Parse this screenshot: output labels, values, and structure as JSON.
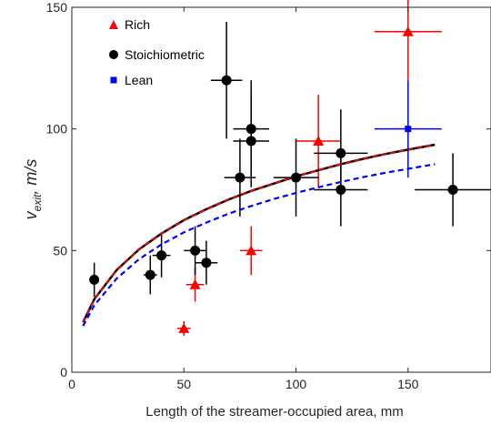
{
  "chart_data": {
    "type": "scatter",
    "xlabel": "Length of the streamer-occupied area, mm",
    "ylabel": {
      "main": "v",
      "sub": "exit",
      "unit": ", m/s"
    },
    "xlim": [
      0,
      187
    ],
    "ylim": [
      0,
      150
    ],
    "xticks": [
      0,
      50,
      100,
      150
    ],
    "yticks": [
      0,
      50,
      100,
      150
    ],
    "xtick_labels": [
      "0",
      "50",
      "100",
      "150"
    ],
    "ytick_labels": [
      "0",
      "50",
      "100",
      "150"
    ],
    "grid": false,
    "legend_position": "top-left",
    "series": [
      {
        "name": "Rich",
        "marker": "triangle",
        "color": "#ff0000",
        "points": [
          {
            "x": 50,
            "y": 18,
            "xerr": 3,
            "yerr": 3
          },
          {
            "x": 55,
            "y": 36,
            "xerr": 4,
            "yerr": 7
          },
          {
            "x": 80,
            "y": 50,
            "xerr": 5,
            "yerr": 10
          },
          {
            "x": 110,
            "y": 95,
            "xerr": 10,
            "yerr": 19
          },
          {
            "x": 150,
            "y": 140,
            "xerr": 15,
            "yerr": 20
          }
        ]
      },
      {
        "name": "Stoichiometric",
        "marker": "circle",
        "color": "#000000",
        "points": [
          {
            "x": 10,
            "y": 38,
            "xerr": 1,
            "yerr": 7
          },
          {
            "x": 35,
            "y": 40,
            "xerr": 3,
            "yerr": 8
          },
          {
            "x": 40,
            "y": 48,
            "xerr": 4,
            "yerr": 9
          },
          {
            "x": 55,
            "y": 50,
            "xerr": 5,
            "yerr": 10
          },
          {
            "x": 60,
            "y": 45,
            "xerr": 5,
            "yerr": 9
          },
          {
            "x": 69,
            "y": 120,
            "xerr": 7,
            "yerr": 24
          },
          {
            "x": 75,
            "y": 80,
            "xerr": 7,
            "yerr": 16
          },
          {
            "x": 80,
            "y": 100,
            "xerr": 8,
            "yerr": 20
          },
          {
            "x": 80,
            "y": 95,
            "xerr": 8,
            "yerr": 19
          },
          {
            "x": 100,
            "y": 80,
            "xerr": 10,
            "yerr": 16
          },
          {
            "x": 120,
            "y": 90,
            "xerr": 12,
            "yerr": 18
          },
          {
            "x": 120,
            "y": 75,
            "xerr": 12,
            "yerr": 15
          },
          {
            "x": 170,
            "y": 75,
            "xerr": 17,
            "yerr": 15
          }
        ]
      },
      {
        "name": "Lean",
        "marker": "square",
        "color": "#0000ff",
        "points": [
          {
            "x": 150,
            "y": 100,
            "xerr": 15,
            "yerr": 20
          }
        ]
      }
    ],
    "fit_curves": [
      {
        "style": "solid",
        "color": "#000000",
        "width": 2.5,
        "x_range": [
          5,
          162
        ],
        "points": [
          [
            5,
            20.5
          ],
          [
            10,
            30
          ],
          [
            20,
            42
          ],
          [
            30,
            50.5
          ],
          [
            40,
            57
          ],
          [
            50,
            62.5
          ],
          [
            60,
            67
          ],
          [
            70,
            71
          ],
          [
            80,
            74.5
          ],
          [
            90,
            77.5
          ],
          [
            100,
            80.5
          ],
          [
            110,
            83
          ],
          [
            120,
            85.5
          ],
          [
            130,
            87.7
          ],
          [
            140,
            89.7
          ],
          [
            150,
            91.5
          ],
          [
            162,
            93.5
          ]
        ]
      },
      {
        "style": "dashed",
        "color": "#ff0000",
        "width": 1.8,
        "x_range": [
          5,
          162
        ],
        "points": [
          [
            5,
            20.5
          ],
          [
            10,
            30
          ],
          [
            20,
            42
          ],
          [
            30,
            50.5
          ],
          [
            40,
            57
          ],
          [
            50,
            62.5
          ],
          [
            60,
            67
          ],
          [
            70,
            71
          ],
          [
            80,
            74.5
          ],
          [
            90,
            77.5
          ],
          [
            100,
            80.5
          ],
          [
            110,
            83
          ],
          [
            120,
            85.5
          ],
          [
            130,
            87.7
          ],
          [
            140,
            89.7
          ],
          [
            150,
            91.5
          ],
          [
            162,
            93.5
          ]
        ]
      },
      {
        "style": "dashed",
        "color": "#0000ff",
        "width": 2.2,
        "x_range": [
          5,
          162
        ],
        "points": [
          [
            5,
            19
          ],
          [
            10,
            27.5
          ],
          [
            20,
            38.5
          ],
          [
            30,
            46.5
          ],
          [
            40,
            52.5
          ],
          [
            50,
            57.5
          ],
          [
            60,
            61.5
          ],
          [
            70,
            65.2
          ],
          [
            80,
            68.3
          ],
          [
            90,
            71.2
          ],
          [
            100,
            73.7
          ],
          [
            110,
            76
          ],
          [
            120,
            78.2
          ],
          [
            130,
            80.2
          ],
          [
            140,
            82
          ],
          [
            150,
            83.6
          ],
          [
            162,
            85.5
          ]
        ]
      }
    ]
  }
}
